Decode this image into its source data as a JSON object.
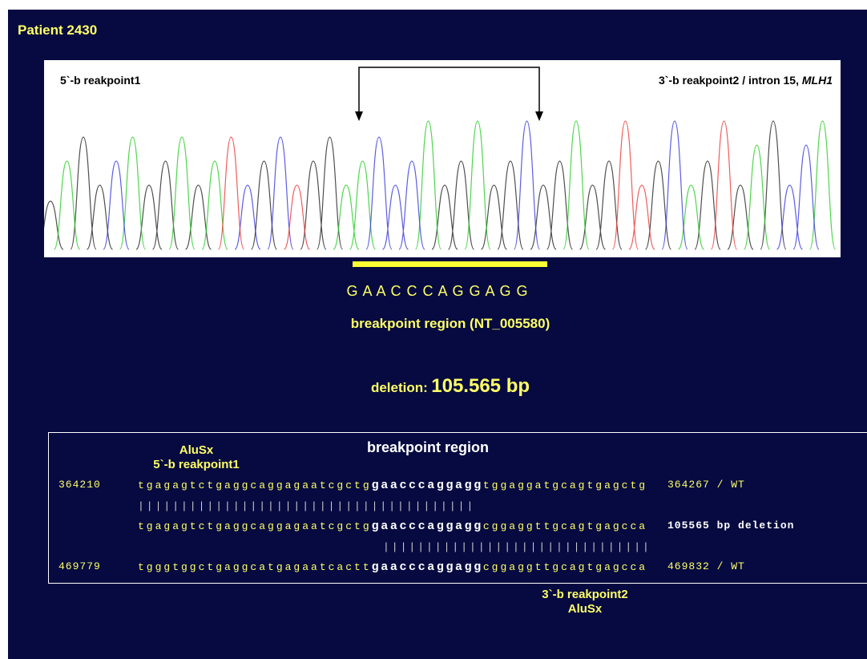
{
  "title": "Patient 2430",
  "chromatogram": {
    "left_label": "5`-b reakpoint1",
    "right_label": "3`-b reakpoint2 / intron 15, ",
    "right_label_gene": "MLH1"
  },
  "sequence": "G A A C C C A G G A G G",
  "region_label": "breakpoint region (NT_005580)",
  "deletion": {
    "label": "deletion:",
    "size": "105.565 bp"
  },
  "alignment": {
    "heading": "breakpoint region",
    "top_labels": [
      "AluSx",
      "5`-b reakpoint1"
    ],
    "rows": [
      {
        "position": "364210",
        "pre": "tgagagtctgaggcaggagaatcgctg",
        "core": "gaacccaggagg",
        "post": "tggaggatgcagtgagctg",
        "end": "364267 / WT"
      },
      {
        "pre": "tgagagtctgaggcaggagaatcgctg",
        "core": "gaacccaggagg",
        "post": "cggaggttgcagtgagcca",
        "end": "105565 bp deletion"
      },
      {
        "position": "469779",
        "pre": "tgggtggctgaggcatgagaatcactt",
        "core": "gaacccaggagg",
        "post": "cggaggttgcagtgagcca",
        "end": "469832 / WT"
      }
    ],
    "match_lines": [
      "|||||||||||||||||||||||||||||||||||||||",
      "|||||||||||||||||||||||||||||||"
    ],
    "bottom_labels": [
      "3`-b reakpoint2",
      "AluSx"
    ]
  }
}
